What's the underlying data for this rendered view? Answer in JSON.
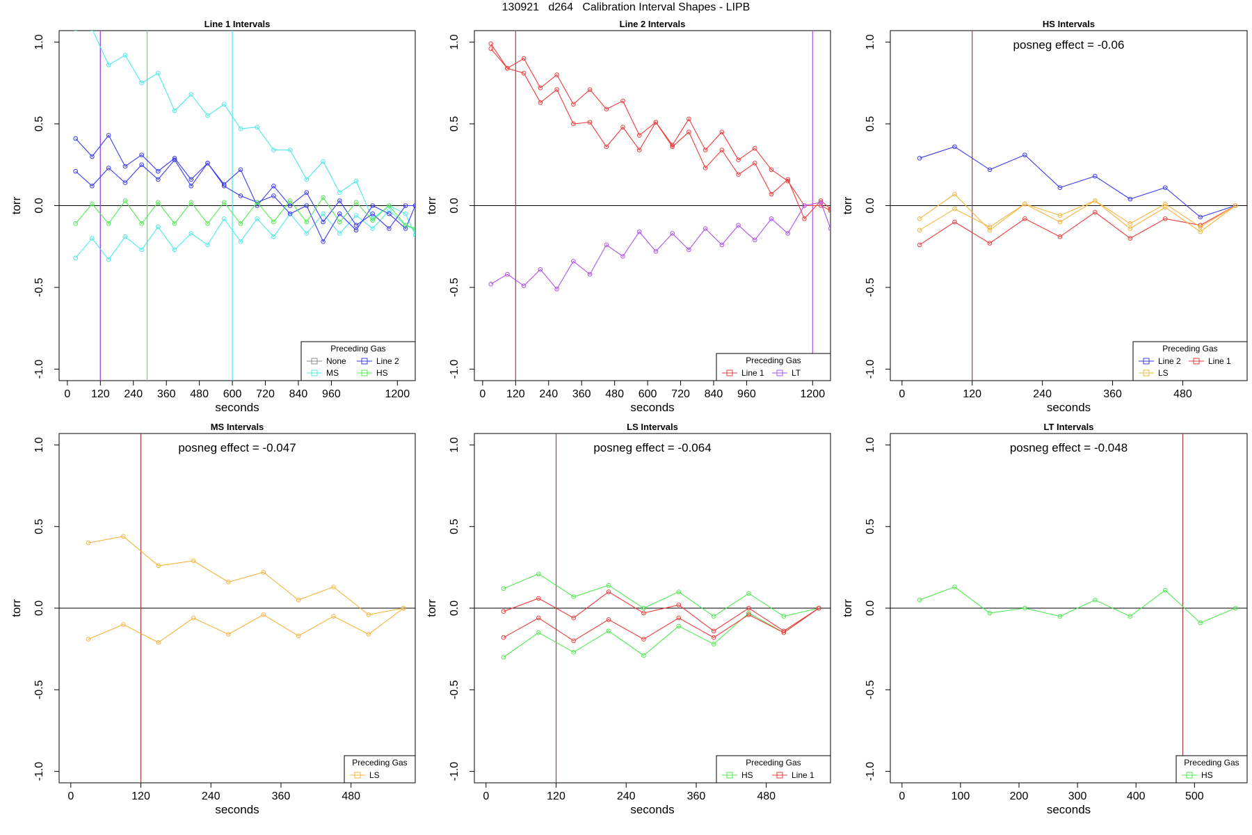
{
  "figure": {
    "title": "130921   d264   Calibration Interval Shapes - LIPB"
  },
  "colors": {
    "None": "#888888",
    "Line 1": "#ee3b3b",
    "Line 2": "#3a3af0",
    "MS": "#4ee8e8",
    "HS": "#4eea4e",
    "LS": "#f5b43c",
    "LT": "#b050e8",
    "axis": "#000000",
    "vline": "#a33c3c"
  },
  "chart_data": [
    {
      "type": "line",
      "title": "Line 1 Intervals",
      "xlabel": "seconds",
      "ylabel": "torr",
      "xlim": [
        -30,
        1265
      ],
      "ylim": [
        -1.07,
        1.07
      ],
      "xticks": [
        0,
        120,
        240,
        360,
        480,
        600,
        720,
        840,
        960,
        1200
      ],
      "yticks": [
        -1.0,
        -0.5,
        0.0,
        0.5,
        1.0
      ],
      "hline": 0,
      "vlines": [
        {
          "x": 120,
          "color": "Line 2"
        },
        {
          "x": 120,
          "color": "LT"
        },
        {
          "x": 290,
          "color": "HS"
        },
        {
          "x": 600,
          "color": "MS"
        }
      ],
      "annotation": "",
      "legend": {
        "title": "Preceding Gas",
        "position": "bottom-right",
        "entries": [
          "None",
          "Line 2",
          "MS",
          "HS"
        ],
        "columns": 2
      },
      "series": [
        {
          "name": "MS",
          "color": "MS",
          "x": [
            30,
            90,
            150,
            210,
            270,
            330,
            390,
            450,
            510,
            570,
            630,
            690,
            750,
            810,
            870,
            930,
            990,
            1050,
            1110,
            1170,
            1230,
            1265
          ],
          "y": [
            1.08,
            1.08,
            0.86,
            0.92,
            0.75,
            0.81,
            0.58,
            0.68,
            0.55,
            0.62,
            0.47,
            0.48,
            0.34,
            0.34,
            0.16,
            0.27,
            0.08,
            0.15,
            -0.08,
            0.0,
            -0.05,
            -0.18
          ]
        },
        {
          "name": "MS",
          "color": "MS",
          "x": [
            30,
            90,
            150,
            210,
            270,
            330,
            390,
            450,
            510,
            570,
            630,
            690,
            750,
            810,
            870,
            930,
            990,
            1050,
            1110,
            1170,
            1230,
            1265
          ],
          "y": [
            -0.32,
            -0.2,
            -0.33,
            -0.19,
            -0.27,
            -0.13,
            -0.27,
            -0.17,
            -0.24,
            -0.08,
            -0.22,
            -0.08,
            -0.19,
            -0.05,
            -0.17,
            -0.05,
            -0.17,
            -0.06,
            -0.14,
            -0.03,
            -0.12,
            -0.15
          ]
        },
        {
          "name": "Line 2",
          "color": "Line 2",
          "x": [
            30,
            90,
            150,
            210,
            270,
            330,
            390,
            450,
            510,
            570,
            630,
            690,
            750,
            810,
            870,
            930,
            990,
            1050,
            1110,
            1170,
            1230,
            1265
          ],
          "y": [
            0.41,
            0.3,
            0.43,
            0.24,
            0.31,
            0.21,
            0.29,
            0.16,
            0.26,
            0.13,
            0.22,
            0.0,
            0.12,
            0.0,
            0.08,
            -0.1,
            0.03,
            -0.12,
            -0.05,
            -0.14,
            0.0,
            0.0
          ]
        },
        {
          "name": "Line 2",
          "color": "Line 2",
          "x": [
            30,
            90,
            150,
            210,
            270,
            330,
            390,
            450,
            510,
            570,
            630,
            690,
            750,
            810,
            870,
            930,
            990,
            1050,
            1110,
            1170,
            1230,
            1265
          ],
          "y": [
            0.21,
            0.12,
            0.23,
            0.14,
            0.25,
            0.16,
            0.28,
            0.12,
            0.26,
            0.12,
            0.06,
            0.02,
            0.06,
            -0.05,
            0.0,
            -0.22,
            -0.05,
            -0.15,
            0.0,
            -0.05,
            -0.14,
            0.0
          ]
        },
        {
          "name": "HS",
          "color": "HS",
          "x": [
            30,
            90,
            150,
            210,
            270,
            330,
            390,
            450,
            510,
            570,
            630,
            690,
            750,
            810,
            870,
            930,
            990,
            1050,
            1110,
            1170,
            1230,
            1265
          ],
          "y": [
            -0.11,
            0.01,
            -0.11,
            0.03,
            -0.11,
            0.02,
            -0.11,
            0.02,
            -0.11,
            0.02,
            -0.11,
            0.02,
            -0.1,
            0.03,
            -0.1,
            0.05,
            -0.1,
            0.02,
            -0.09,
            0.0,
            -0.12,
            -0.14
          ]
        }
      ]
    },
    {
      "type": "line",
      "title": "Line 2 Intervals",
      "xlabel": "seconds",
      "ylabel": "torr",
      "xlim": [
        -30,
        1265
      ],
      "ylim": [
        -1.07,
        1.07
      ],
      "xticks": [
        0,
        120,
        240,
        360,
        480,
        600,
        720,
        840,
        960,
        1200
      ],
      "yticks": [
        -1.0,
        -0.5,
        0.0,
        0.5,
        1.0
      ],
      "hline": 0,
      "vlines": [
        {
          "x": 120,
          "color": "vline"
        },
        {
          "x": 1200,
          "color": "LT"
        }
      ],
      "annotation": "",
      "legend": {
        "title": "Preceding Gas",
        "position": "bottom-right",
        "entries": [
          "Line 1",
          "LT"
        ],
        "columns": 2
      },
      "series": [
        {
          "name": "Line 1",
          "color": "Line 1",
          "x": [
            30,
            90,
            150,
            210,
            270,
            330,
            390,
            450,
            510,
            570,
            630,
            690,
            750,
            810,
            870,
            930,
            990,
            1050,
            1110,
            1170,
            1230,
            1265
          ],
          "y": [
            0.99,
            0.84,
            0.81,
            0.63,
            0.71,
            0.5,
            0.51,
            0.36,
            0.48,
            0.34,
            0.51,
            0.36,
            0.45,
            0.23,
            0.34,
            0.19,
            0.26,
            0.07,
            0.16,
            -0.08,
            0.03,
            -0.02
          ]
        },
        {
          "name": "Line 1",
          "color": "Line 1",
          "x": [
            30,
            90,
            150,
            210,
            270,
            330,
            390,
            450,
            510,
            570,
            630,
            690,
            750,
            810,
            870,
            930,
            990,
            1050,
            1110,
            1170,
            1230,
            1265
          ],
          "y": [
            0.96,
            0.84,
            0.9,
            0.72,
            0.8,
            0.62,
            0.71,
            0.59,
            0.64,
            0.43,
            0.51,
            0.37,
            0.53,
            0.34,
            0.45,
            0.28,
            0.35,
            0.22,
            0.15,
            0.0,
            0.0,
            -0.03
          ]
        },
        {
          "name": "LT",
          "color": "LT",
          "x": [
            30,
            90,
            150,
            210,
            270,
            330,
            390,
            450,
            510,
            570,
            630,
            690,
            750,
            810,
            870,
            930,
            990,
            1050,
            1110,
            1170,
            1230,
            1265
          ],
          "y": [
            -0.48,
            -0.42,
            -0.49,
            -0.39,
            -0.51,
            -0.34,
            -0.42,
            -0.24,
            -0.31,
            -0.16,
            -0.28,
            -0.17,
            -0.27,
            -0.14,
            -0.24,
            -0.12,
            -0.21,
            -0.08,
            -0.17,
            0.0,
            0.02,
            -0.14
          ]
        }
      ]
    },
    {
      "type": "line",
      "title": "HS Intervals",
      "xlabel": "seconds",
      "ylabel": "torr",
      "xlim": [
        -20,
        590
      ],
      "ylim": [
        -1.07,
        1.07
      ],
      "xticks": [
        0,
        120,
        240,
        360,
        480
      ],
      "yticks": [
        -1.0,
        -0.5,
        0.0,
        0.5,
        1.0
      ],
      "hline": 0,
      "vlines": [
        {
          "x": 120,
          "color": "vline"
        }
      ],
      "annotation": "posneg effect = -0.06",
      "legend": {
        "title": "Preceding Gas",
        "position": "bottom-right",
        "entries": [
          "Line 2",
          "Line 1",
          "LS"
        ],
        "columns": 2
      },
      "series": [
        {
          "name": "Line 2",
          "color": "Line 2",
          "x": [
            30,
            90,
            150,
            210,
            270,
            330,
            390,
            450,
            510,
            570
          ],
          "y": [
            0.29,
            0.36,
            0.22,
            0.31,
            0.11,
            0.18,
            0.04,
            0.11,
            -0.07,
            0.0
          ]
        },
        {
          "name": "Line 1",
          "color": "Line 1",
          "x": [
            30,
            90,
            150,
            210,
            270,
            330,
            390,
            450,
            510,
            570
          ],
          "y": [
            -0.24,
            -0.1,
            -0.23,
            -0.08,
            -0.19,
            -0.04,
            -0.2,
            -0.08,
            -0.12,
            0.0
          ]
        },
        {
          "name": "LS",
          "color": "LS",
          "x": [
            30,
            90,
            150,
            210,
            270,
            330,
            390,
            450,
            510,
            570
          ],
          "y": [
            -0.08,
            0.07,
            -0.15,
            0.01,
            -0.1,
            0.03,
            -0.11,
            0.01,
            -0.13,
            0.0
          ]
        },
        {
          "name": "LS",
          "color": "LS",
          "x": [
            30,
            90,
            150,
            210,
            270,
            330,
            390,
            450,
            510,
            570
          ],
          "y": [
            -0.15,
            -0.02,
            -0.13,
            0.01,
            -0.06,
            0.03,
            -0.14,
            -0.01,
            -0.16,
            0.0
          ]
        }
      ]
    },
    {
      "type": "line",
      "title": "MS Intervals",
      "xlabel": "seconds",
      "ylabel": "torr",
      "xlim": [
        -20,
        590
      ],
      "ylim": [
        -1.07,
        1.07
      ],
      "xticks": [
        0,
        120,
        240,
        360,
        480
      ],
      "yticks": [
        -1.0,
        -0.5,
        0.0,
        0.5,
        1.0
      ],
      "hline": 0,
      "vlines": [
        {
          "x": 120,
          "color": "vline"
        }
      ],
      "annotation": "posneg effect = -0.047",
      "legend": {
        "title": "Preceding Gas",
        "position": "bottom-right",
        "entries": [
          "LS"
        ],
        "columns": 1
      },
      "series": [
        {
          "name": "LS",
          "color": "LS",
          "x": [
            30,
            90,
            150,
            210,
            270,
            330,
            390,
            450,
            510,
            570
          ],
          "y": [
            0.4,
            0.44,
            0.26,
            0.29,
            0.16,
            0.22,
            0.05,
            0.13,
            -0.04,
            0.0
          ]
        },
        {
          "name": "LS",
          "color": "LS",
          "x": [
            30,
            90,
            150,
            210,
            270,
            330,
            390,
            450,
            510,
            570
          ],
          "y": [
            -0.19,
            -0.1,
            -0.21,
            -0.06,
            -0.16,
            -0.04,
            -0.17,
            -0.05,
            -0.16,
            0.0
          ]
        }
      ]
    },
    {
      "type": "line",
      "title": "LS Intervals",
      "xlabel": "seconds",
      "ylabel": "torr",
      "xlim": [
        -20,
        590
      ],
      "ylim": [
        -1.07,
        1.07
      ],
      "xticks": [
        0,
        120,
        240,
        360,
        480
      ],
      "yticks": [
        -1.0,
        -0.5,
        0.0,
        0.5,
        1.0
      ],
      "hline": 0,
      "vlines": [
        {
          "x": 120,
          "color": "vline"
        }
      ],
      "annotation": "posneg effect = -0.064",
      "legend": {
        "title": "Preceding Gas",
        "position": "bottom-right",
        "entries": [
          "HS",
          "Line 1"
        ],
        "columns": 2
      },
      "series": [
        {
          "name": "HS",
          "color": "HS",
          "x": [
            30,
            90,
            150,
            210,
            270,
            330,
            390,
            450,
            510,
            570
          ],
          "y": [
            0.12,
            0.21,
            0.07,
            0.14,
            0.0,
            0.1,
            -0.05,
            0.09,
            -0.05,
            0.0
          ]
        },
        {
          "name": "HS",
          "color": "HS",
          "x": [
            30,
            90,
            150,
            210,
            270,
            330,
            390,
            450,
            510,
            570
          ],
          "y": [
            -0.3,
            -0.15,
            -0.27,
            -0.14,
            -0.29,
            -0.11,
            -0.22,
            -0.03,
            -0.15,
            0.0
          ]
        },
        {
          "name": "Line 1",
          "color": "Line 1",
          "x": [
            30,
            90,
            150,
            210,
            270,
            330,
            390,
            450,
            510,
            570
          ],
          "y": [
            -0.02,
            0.06,
            -0.06,
            0.1,
            -0.03,
            0.02,
            -0.14,
            0.0,
            -0.14,
            0.0
          ]
        },
        {
          "name": "Line 1",
          "color": "Line 1",
          "x": [
            30,
            90,
            150,
            210,
            270,
            330,
            390,
            450,
            510,
            570
          ],
          "y": [
            -0.18,
            -0.06,
            -0.2,
            -0.07,
            -0.19,
            -0.06,
            -0.18,
            -0.04,
            -0.15,
            0.0
          ]
        }
      ]
    },
    {
      "type": "line",
      "title": "LT Intervals",
      "xlabel": "seconds",
      "ylabel": "torr",
      "xlim": [
        -20,
        590
      ],
      "ylim": [
        -1.07,
        1.07
      ],
      "xticks": [
        0,
        100,
        200,
        300,
        400,
        500
      ],
      "yticks": [
        -1.0,
        -0.5,
        0.0,
        0.5,
        1.0
      ],
      "hline": 0,
      "vlines": [
        {
          "x": 480,
          "color": "vline"
        }
      ],
      "annotation": "posneg effect = -0.048",
      "legend": {
        "title": "Preceding Gas",
        "position": "bottom-right",
        "entries": [
          "HS"
        ],
        "columns": 1
      },
      "series": [
        {
          "name": "HS",
          "color": "HS",
          "x": [
            30,
            90,
            150,
            210,
            270,
            330,
            390,
            450,
            510,
            570
          ],
          "y": [
            0.05,
            0.13,
            -0.03,
            0.0,
            -0.05,
            0.05,
            -0.05,
            0.11,
            -0.09,
            0.0
          ]
        }
      ]
    }
  ]
}
